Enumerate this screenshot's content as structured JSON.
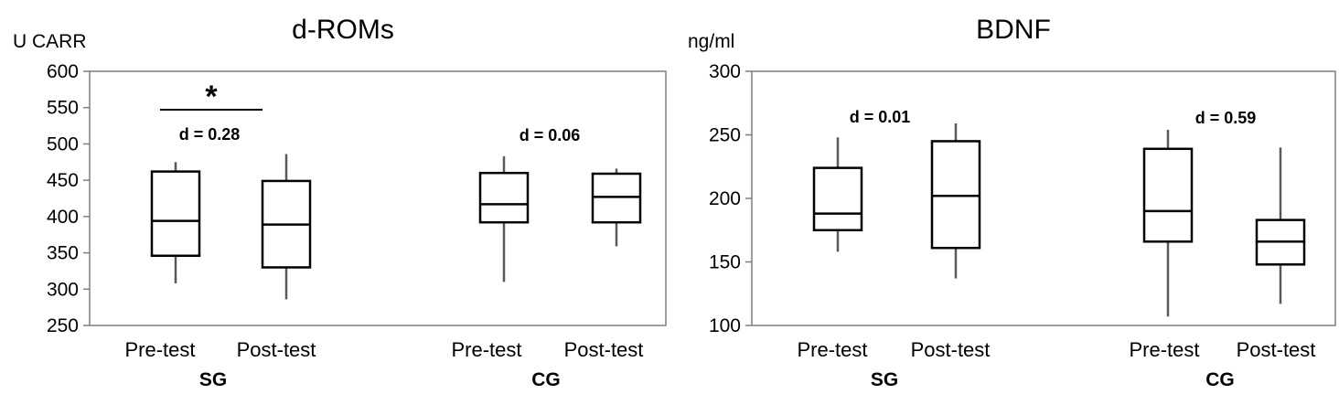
{
  "chart_data": [
    {
      "type": "box",
      "title": "d-ROMs",
      "ylabel": "U CARR",
      "ylim": [
        250,
        600
      ],
      "yticks": [
        250,
        300,
        350,
        400,
        450,
        500,
        550,
        600
      ],
      "groups": [
        {
          "name": "SG",
          "categories": [
            "Pre-test",
            "Post-test"
          ],
          "effect": "d = 0.28",
          "significance": "*"
        },
        {
          "name": "CG",
          "categories": [
            "Pre-test",
            "Post-test"
          ],
          "effect": "d = 0.06"
        }
      ],
      "boxes": [
        {
          "group": "SG",
          "category": "Pre-test",
          "min": 308,
          "q1": 346,
          "median": 394,
          "q3": 462,
          "max": 475
        },
        {
          "group": "SG",
          "category": "Post-test",
          "min": 286,
          "q1": 330,
          "median": 389,
          "q3": 449,
          "max": 486
        },
        {
          "group": "CG",
          "category": "Pre-test",
          "min": 310,
          "q1": 392,
          "median": 417,
          "q3": 460,
          "max": 483
        },
        {
          "group": "CG",
          "category": "Post-test",
          "min": 359,
          "q1": 392,
          "median": 427,
          "q3": 459,
          "max": 466
        }
      ],
      "grid": false
    },
    {
      "type": "box",
      "title": "BDNF",
      "ylabel": "ng/ml",
      "ylim": [
        100,
        300
      ],
      "yticks": [
        100,
        150,
        200,
        250,
        300
      ],
      "groups": [
        {
          "name": "SG",
          "categories": [
            "Pre-test",
            "Post-test"
          ],
          "effect": "d = 0.01"
        },
        {
          "name": "CG",
          "categories": [
            "Pre-test",
            "Post-test"
          ],
          "effect": "d = 0.59"
        }
      ],
      "boxes": [
        {
          "group": "SG",
          "category": "Pre-test",
          "min": 158,
          "q1": 175,
          "median": 188,
          "q3": 224,
          "max": 248
        },
        {
          "group": "SG",
          "category": "Post-test",
          "min": 137,
          "q1": 161,
          "median": 202,
          "q3": 245,
          "max": 259
        },
        {
          "group": "CG",
          "category": "Pre-test",
          "min": 107,
          "q1": 166,
          "median": 190,
          "q3": 239,
          "max": 254
        },
        {
          "group": "CG",
          "category": "Post-test",
          "min": 117,
          "q1": 148,
          "median": 166,
          "q3": 183,
          "max": 240
        }
      ],
      "grid": false
    }
  ]
}
